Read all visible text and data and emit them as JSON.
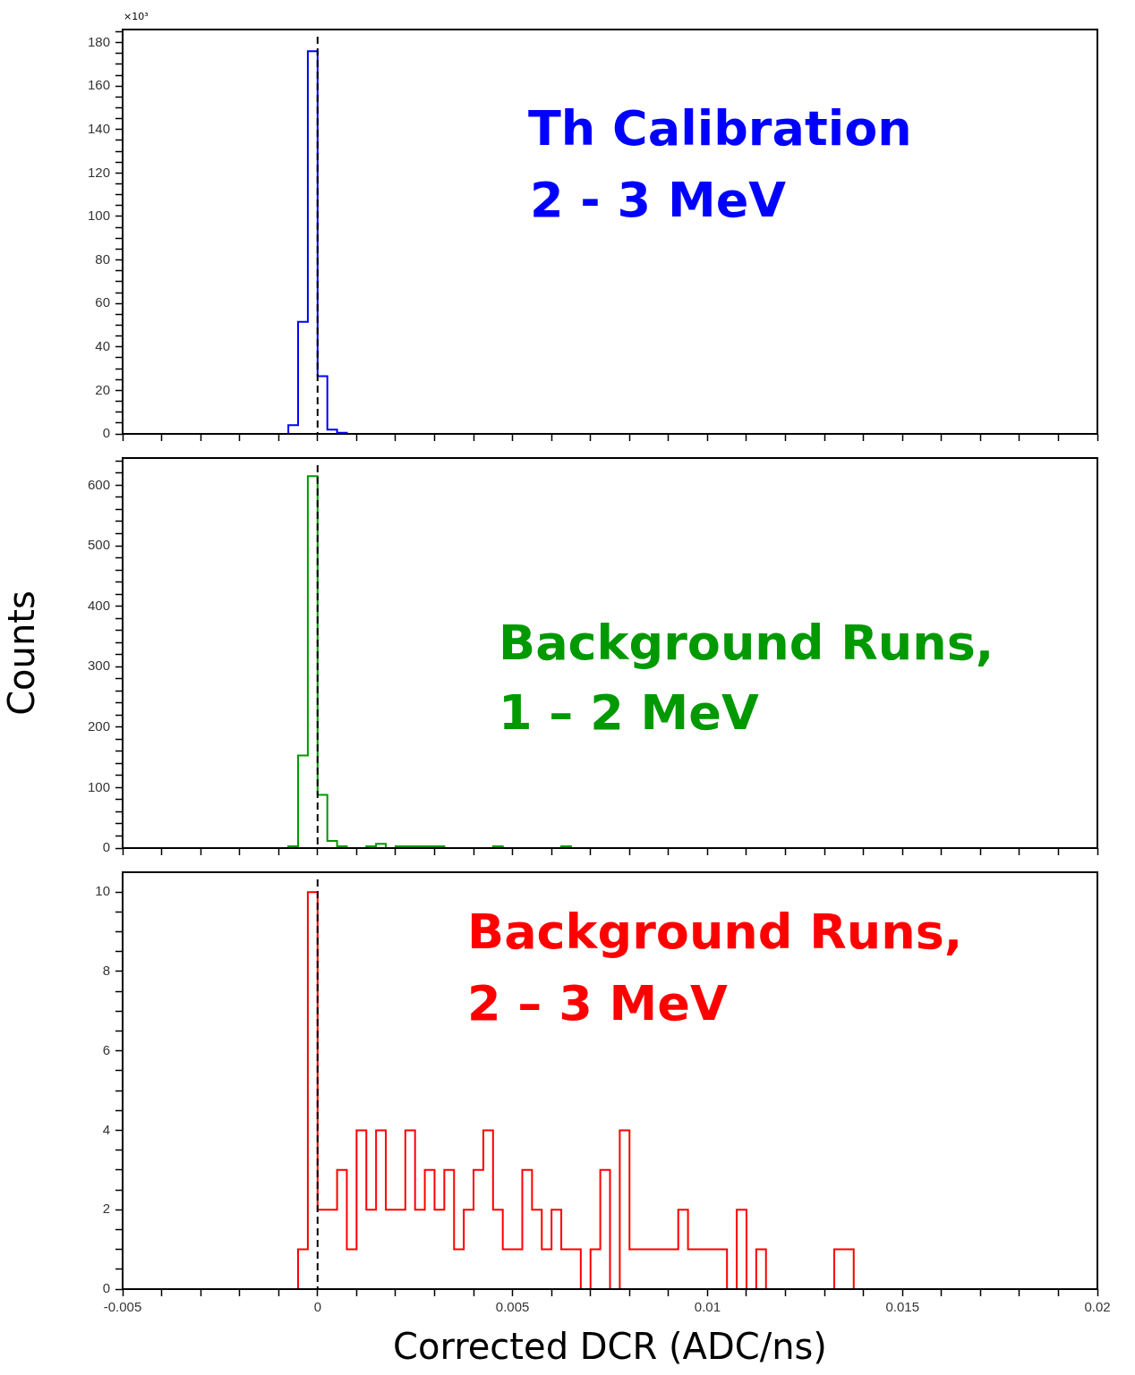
{
  "chart_data": [
    {
      "type": "histogram",
      "color": "#0000ff",
      "bins": [
        -0.00075,
        -0.0005,
        -0.00025,
        0,
        0.00025,
        0.0005,
        0.00075
      ],
      "values": [
        4,
        51.5,
        176,
        26.5,
        2,
        0.5
      ],
      "xlim": [
        -0.005,
        0.02
      ],
      "xticks": [
        {
          "value": -0.005,
          "label": null
        },
        {
          "value": -0.004,
          "label": null
        },
        {
          "value": -0.003,
          "label": null
        },
        {
          "value": -0.002,
          "label": null
        },
        {
          "value": -0.001,
          "label": null
        },
        {
          "value": 0,
          "label": null
        },
        {
          "value": 0.001,
          "label": null
        },
        {
          "value": 0.002,
          "label": null
        },
        {
          "value": 0.003,
          "label": null
        },
        {
          "value": 0.004,
          "label": null
        },
        {
          "value": 0.005,
          "label": null
        },
        {
          "value": 0.006,
          "label": null
        },
        {
          "value": 0.007,
          "label": null
        },
        {
          "value": 0.008,
          "label": null
        },
        {
          "value": 0.009,
          "label": null
        },
        {
          "value": 0.01,
          "label": null
        },
        {
          "value": 0.011,
          "label": null
        },
        {
          "value": 0.012,
          "label": null
        },
        {
          "value": 0.013,
          "label": null
        },
        {
          "value": 0.014,
          "label": null
        },
        {
          "value": 0.015,
          "label": null
        },
        {
          "value": 0.016,
          "label": null
        },
        {
          "value": 0.017,
          "label": null
        },
        {
          "value": 0.018,
          "label": null
        },
        {
          "value": 0.019,
          "label": null
        },
        {
          "value": 0.02,
          "label": null
        }
      ],
      "ylim": [
        0,
        186
      ],
      "yticks": [
        0,
        {
          "value": 5,
          "label": null
        },
        {
          "value": 10,
          "label": null
        },
        {
          "value": 15,
          "label": null
        },
        20,
        {
          "value": 25,
          "label": null
        },
        {
          "value": 30,
          "label": null
        },
        {
          "value": 35,
          "label": null
        },
        40,
        {
          "value": 45,
          "label": null
        },
        {
          "value": 50,
          "label": null
        },
        {
          "value": 55,
          "label": null
        },
        60,
        {
          "value": 65,
          "label": null
        },
        {
          "value": 70,
          "label": null
        },
        {
          "value": 75,
          "label": null
        },
        80,
        {
          "value": 85,
          "label": null
        },
        {
          "value": 90,
          "label": null
        },
        {
          "value": 95,
          "label": null
        },
        100,
        {
          "value": 105,
          "label": null
        },
        {
          "value": 110,
          "label": null
        },
        {
          "value": 115,
          "label": null
        },
        120,
        {
          "value": 125,
          "label": null
        },
        {
          "value": 130,
          "label": null
        },
        {
          "value": 135,
          "label": null
        },
        140,
        {
          "value": 145,
          "label": null
        },
        {
          "value": 150,
          "label": null
        },
        {
          "value": 155,
          "label": null
        },
        160,
        {
          "value": 165,
          "label": null
        },
        {
          "value": 170,
          "label": null
        },
        {
          "value": 175,
          "label": null
        },
        180,
        {
          "value": 185,
          "label": null
        }
      ],
      "tick_labels": "y",
      "grid": false,
      "legend": false,
      "ref_lines": [
        {
          "axis": "x",
          "value": 0,
          "color": "#000000",
          "line_style": "dashed"
        }
      ],
      "annotations": [
        "×10³",
        "Th Calibration",
        "2 - 3 MeV"
      ]
    },
    {
      "type": "histogram",
      "color": "#009900",
      "bins": [
        -0.00075,
        -0.0005,
        -0.00025,
        0,
        0.00025,
        0.0005,
        0.00075,
        0.001,
        0.00125,
        0.0015,
        0.00175,
        0.002,
        0.00225,
        0.0025,
        0.00275,
        0.003,
        0.00325,
        0.0035,
        0.00375,
        0.004,
        0.00425,
        0.0045,
        0.00475,
        0.005,
        0.00525,
        0.0055,
        0.00575,
        0.006,
        0.00625,
        0.0065
      ],
      "values": [
        3,
        153,
        615,
        88,
        12,
        3,
        0,
        0,
        3,
        7,
        0,
        3,
        3,
        3,
        3,
        3,
        0,
        0,
        0,
        0,
        0,
        3,
        0,
        0,
        0,
        0,
        0,
        0,
        3
      ],
      "xlim": [
        -0.005,
        0.02
      ],
      "xticks": [
        {
          "value": -0.005,
          "label": null
        },
        {
          "value": -0.004,
          "label": null
        },
        {
          "value": -0.003,
          "label": null
        },
        {
          "value": -0.002,
          "label": null
        },
        {
          "value": -0.001,
          "label": null
        },
        {
          "value": 0,
          "label": null
        },
        {
          "value": 0.001,
          "label": null
        },
        {
          "value": 0.002,
          "label": null
        },
        {
          "value": 0.003,
          "label": null
        },
        {
          "value": 0.004,
          "label": null
        },
        {
          "value": 0.005,
          "label": null
        },
        {
          "value": 0.006,
          "label": null
        },
        {
          "value": 0.007,
          "label": null
        },
        {
          "value": 0.008,
          "label": null
        },
        {
          "value": 0.009,
          "label": null
        },
        {
          "value": 0.01,
          "label": null
        },
        {
          "value": 0.011,
          "label": null
        },
        {
          "value": 0.012,
          "label": null
        },
        {
          "value": 0.013,
          "label": null
        },
        {
          "value": 0.014,
          "label": null
        },
        {
          "value": 0.015,
          "label": null
        },
        {
          "value": 0.016,
          "label": null
        },
        {
          "value": 0.017,
          "label": null
        },
        {
          "value": 0.018,
          "label": null
        },
        {
          "value": 0.019,
          "label": null
        },
        {
          "value": 0.02,
          "label": null
        }
      ],
      "ylim": [
        0,
        645
      ],
      "yticks": [
        0,
        {
          "value": 20,
          "label": null
        },
        {
          "value": 40,
          "label": null
        },
        {
          "value": 60,
          "label": null
        },
        {
          "value": 80,
          "label": null
        },
        100,
        {
          "value": 120,
          "label": null
        },
        {
          "value": 140,
          "label": null
        },
        {
          "value": 160,
          "label": null
        },
        {
          "value": 180,
          "label": null
        },
        200,
        {
          "value": 220,
          "label": null
        },
        {
          "value": 240,
          "label": null
        },
        {
          "value": 260,
          "label": null
        },
        {
          "value": 280,
          "label": null
        },
        300,
        {
          "value": 320,
          "label": null
        },
        {
          "value": 340,
          "label": null
        },
        {
          "value": 360,
          "label": null
        },
        {
          "value": 380,
          "label": null
        },
        400,
        {
          "value": 420,
          "label": null
        },
        {
          "value": 440,
          "label": null
        },
        {
          "value": 460,
          "label": null
        },
        {
          "value": 480,
          "label": null
        },
        500,
        {
          "value": 520,
          "label": null
        },
        {
          "value": 540,
          "label": null
        },
        {
          "value": 560,
          "label": null
        },
        {
          "value": 580,
          "label": null
        },
        600,
        {
          "value": 620,
          "label": null
        },
        {
          "value": 640,
          "label": null
        }
      ],
      "ylabel": "Counts",
      "tick_labels": "y",
      "grid": false,
      "legend": false,
      "ref_lines": [
        {
          "axis": "x",
          "value": 0,
          "color": "#000000",
          "line_style": "dashed"
        }
      ],
      "annotations": [
        "Background Runs,",
        "1 – 2 MeV"
      ]
    },
    {
      "type": "histogram",
      "color": "#ff0000",
      "bins": [
        -0.0005,
        -0.00025,
        0,
        0.00025,
        0.0005,
        0.00075,
        0.001,
        0.00125,
        0.0015,
        0.00175,
        0.002,
        0.00225,
        0.0025,
        0.00275,
        0.003,
        0.00325,
        0.0035,
        0.00375,
        0.004,
        0.00425,
        0.0045,
        0.00475,
        0.005,
        0.00525,
        0.0055,
        0.00575,
        0.006,
        0.00625,
        0.0065,
        0.00675,
        0.007,
        0.00725,
        0.0075,
        0.00775,
        0.008,
        0.00825,
        0.0085,
        0.00875,
        0.009,
        0.00925,
        0.0095,
        0.00975,
        0.01,
        0.01025,
        0.0105,
        0.01075,
        0.011,
        0.01125,
        0.0115,
        0.01175,
        0.012,
        0.01225,
        0.0125,
        0.01275,
        0.013,
        0.01325,
        0.0135,
        0.01375
      ],
      "values": [
        1,
        10,
        2,
        2,
        3,
        1,
        4,
        2,
        4,
        2,
        2,
        4,
        2,
        3,
        2,
        3,
        1,
        2,
        3,
        4,
        2,
        1,
        1,
        3,
        2,
        1,
        2,
        1,
        1,
        0,
        1,
        3,
        0,
        4,
        1,
        1,
        1,
        1,
        1,
        2,
        1,
        1,
        1,
        1,
        0,
        2,
        0,
        1,
        0,
        0,
        0,
        0,
        0,
        0,
        0,
        1,
        1
      ],
      "xlim": [
        -0.005,
        0.02
      ],
      "xticks": [
        -0.005,
        {
          "value": -0.004,
          "label": null
        },
        {
          "value": -0.003,
          "label": null
        },
        {
          "value": -0.002,
          "label": null
        },
        {
          "value": -0.001,
          "label": null
        },
        0,
        {
          "value": 0.001,
          "label": null
        },
        {
          "value": 0.002,
          "label": null
        },
        {
          "value": 0.003,
          "label": null
        },
        {
          "value": 0.004,
          "label": null
        },
        0.005,
        {
          "value": 0.006,
          "label": null
        },
        {
          "value": 0.007,
          "label": null
        },
        {
          "value": 0.008,
          "label": null
        },
        {
          "value": 0.009,
          "label": null
        },
        0.01,
        {
          "value": 0.011,
          "label": null
        },
        {
          "value": 0.012,
          "label": null
        },
        {
          "value": 0.013,
          "label": null
        },
        {
          "value": 0.014,
          "label": null
        },
        0.015,
        {
          "value": 0.016,
          "label": null
        },
        {
          "value": 0.017,
          "label": null
        },
        {
          "value": 0.018,
          "label": null
        },
        {
          "value": 0.019,
          "label": null
        },
        0.02
      ],
      "ylim": [
        0,
        10.5
      ],
      "yticks": [
        0,
        {
          "value": 0.5,
          "label": null
        },
        {
          "value": 1,
          "label": null
        },
        {
          "value": 1.5,
          "label": null
        },
        2,
        {
          "value": 2.5,
          "label": null
        },
        {
          "value": 3,
          "label": null
        },
        {
          "value": 3.5,
          "label": null
        },
        4,
        {
          "value": 4.5,
          "label": null
        },
        {
          "value": 5,
          "label": null
        },
        {
          "value": 5.5,
          "label": null
        },
        6,
        {
          "value": 6.5,
          "label": null
        },
        {
          "value": 7,
          "label": null
        },
        {
          "value": 7.5,
          "label": null
        },
        8,
        {
          "value": 8.5,
          "label": null
        },
        {
          "value": 9,
          "label": null
        },
        {
          "value": 9.5,
          "label": null
        },
        10
      ],
      "xlabel": "Corrected DCR (ADC/ns)",
      "grid": false,
      "legend": false,
      "ref_lines": [
        {
          "axis": "x",
          "value": 0,
          "color": "#000000",
          "line_style": "dashed"
        }
      ],
      "annotations": [
        "Background Runs,",
        "2 – 3 MeV"
      ]
    }
  ]
}
